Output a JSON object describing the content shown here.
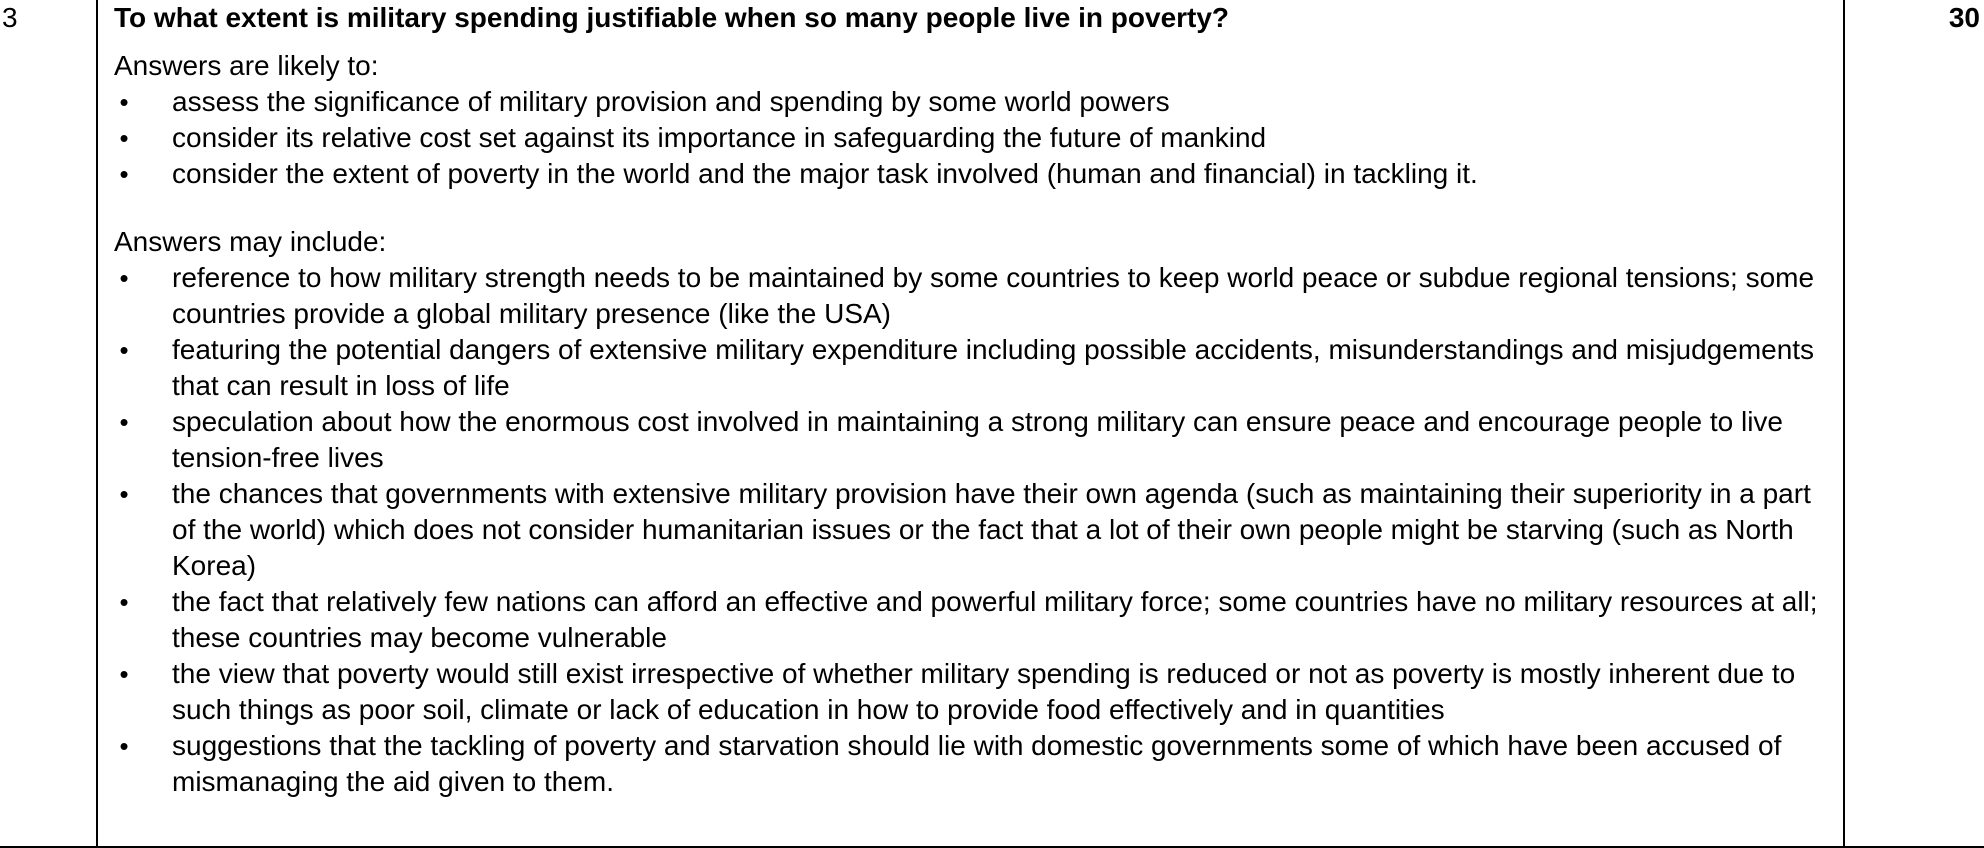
{
  "row": {
    "question_number": "3",
    "question": "To what extent is military spending justifiable when so many people live in poverty?",
    "marks": "30",
    "section_likely": {
      "intro": "Answers are likely to:",
      "bullets": [
        "assess the significance of military provision and spending by some world powers",
        "consider its relative cost set against its importance in safeguarding the future of mankind",
        "consider the extent of poverty in the world and the major task involved (human and financial) in tackling it."
      ]
    },
    "section_may": {
      "intro": "Answers may include:",
      "bullets": [
        "reference to how military strength needs to be maintained by some countries to keep world peace or subdue regional tensions; some countries provide a global military presence (like the USA)",
        "featuring the potential dangers of extensive military expenditure including possible accidents, misunderstandings and misjudgements that can result in loss of life",
        "speculation about how the enormous cost involved in maintaining a strong military can ensure peace and encourage people to live tension-free lives",
        "the chances that governments with extensive military provision have their own agenda (such as maintaining their superiority in a part of the world) which does not consider humanitarian issues or the fact that a lot of their own people might be starving (such as North Korea)",
        "the fact that relatively few nations can afford an effective and powerful military force; some countries have no military resources at all; these countries may become vulnerable",
        "the view that poverty would still exist irrespective of whether military spending is reduced or not as poverty is mostly inherent due to such things as poor soil, climate or lack of education in how to provide food effectively and in quantities",
        "suggestions that the tackling of poverty and starvation should lie with domestic governments some of which have been accused of mismanaging the aid given to them."
      ]
    },
    "bullet_glyph": "•"
  }
}
